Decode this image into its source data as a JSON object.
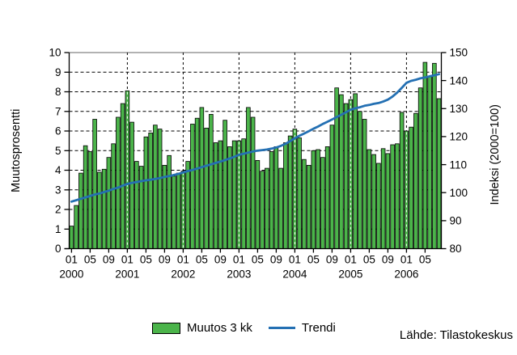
{
  "source_text": "Lähde: Tilastokeskus",
  "legend": {
    "items": [
      {
        "label": "Muutos 3 kk",
        "type": "bar",
        "color": "#4bb44a"
      },
      {
        "label": "Trendi",
        "type": "line",
        "color": "#2470b3"
      }
    ]
  },
  "chart_data": {
    "type": "bar",
    "title": "",
    "grid": {
      "horizontal": "dashed",
      "vertical": "dashed-at-january"
    },
    "legend_position": "bottom-center",
    "left_axis": {
      "label": "Muutosprosentti",
      "min": 0,
      "max": 10,
      "tick_step": 1
    },
    "right_axis": {
      "label": "Indeksi (2000=100)",
      "min": 80,
      "max": 150,
      "tick_step": 10
    },
    "x_axis": {
      "month_tick_labels": [
        "01",
        "05",
        "09"
      ],
      "year_labels": [
        "2000",
        "2001",
        "2002",
        "2003",
        "2004",
        "2005",
        "2006"
      ]
    },
    "months": [
      "2000-01",
      "2000-02",
      "2000-03",
      "2000-04",
      "2000-05",
      "2000-06",
      "2000-07",
      "2000-08",
      "2000-09",
      "2000-10",
      "2000-11",
      "2000-12",
      "2001-01",
      "2001-02",
      "2001-03",
      "2001-04",
      "2001-05",
      "2001-06",
      "2001-07",
      "2001-08",
      "2001-09",
      "2001-10",
      "2001-11",
      "2001-12",
      "2002-01",
      "2002-02",
      "2002-03",
      "2002-04",
      "2002-05",
      "2002-06",
      "2002-07",
      "2002-08",
      "2002-09",
      "2002-10",
      "2002-11",
      "2002-12",
      "2003-01",
      "2003-02",
      "2003-03",
      "2003-04",
      "2003-05",
      "2003-06",
      "2003-07",
      "2003-08",
      "2003-09",
      "2003-10",
      "2003-11",
      "2003-12",
      "2004-01",
      "2004-02",
      "2004-03",
      "2004-04",
      "2004-05",
      "2004-06",
      "2004-07",
      "2004-08",
      "2004-09",
      "2004-10",
      "2004-11",
      "2004-12",
      "2005-01",
      "2005-02",
      "2005-03",
      "2005-04",
      "2005-05",
      "2005-06",
      "2005-07",
      "2005-08",
      "2005-09",
      "2005-10",
      "2005-11",
      "2005-12",
      "2006-01",
      "2006-02",
      "2006-03",
      "2006-04",
      "2006-05",
      "2006-06",
      "2006-07",
      "2006-08"
    ],
    "series": [
      {
        "name": "Muutos 3 kk",
        "type": "bar",
        "axis": "left",
        "color": "#4bb44a",
        "values": [
          1.15,
          2.2,
          3.85,
          5.25,
          4.95,
          6.6,
          3.9,
          4.05,
          4.65,
          5.35,
          6.7,
          7.4,
          8.05,
          6.45,
          4.45,
          4.2,
          5.7,
          5.9,
          6.3,
          6.1,
          4.25,
          4.75,
          3.7,
          3.85,
          3.95,
          4.45,
          6.35,
          6.65,
          7.2,
          6.15,
          6.85,
          5.4,
          5.5,
          6.55,
          5.2,
          5.5,
          5.5,
          5.6,
          7.2,
          6.7,
          4.5,
          3.95,
          4.1,
          4.95,
          5.2,
          4.1,
          5.4,
          5.75,
          6.1,
          5.65,
          4.55,
          4.25,
          5.0,
          5.05,
          4.65,
          5.2,
          6.3,
          8.2,
          7.85,
          7.4,
          7.6,
          7.9,
          7.0,
          6.6,
          5.05,
          4.8,
          4.35,
          5.1,
          4.85,
          5.3,
          5.35,
          6.95,
          6.0,
          6.2,
          6.9,
          8.2,
          9.5,
          8.8,
          9.45,
          7.65
        ]
      },
      {
        "name": "Trendi",
        "type": "line",
        "axis": "right",
        "color": "#2470b3",
        "values": [
          96.8,
          97.3,
          97.8,
          98.3,
          98.8,
          99.3,
          99.7,
          100.2,
          100.7,
          101.3,
          101.8,
          102.5,
          103.1,
          103.5,
          103.8,
          104.1,
          104.4,
          104.6,
          104.9,
          105.2,
          105.6,
          105.9,
          106.3,
          106.7,
          107.2,
          107.7,
          108.1,
          108.6,
          109.1,
          109.6,
          110.1,
          110.6,
          111.1,
          111.6,
          112.2,
          112.8,
          113.5,
          113.9,
          114.3,
          114.7,
          115.0,
          115.2,
          115.4,
          115.7,
          116.1,
          116.7,
          117.4,
          118.4,
          119.4,
          120.3,
          121.1,
          121.9,
          122.8,
          123.6,
          124.5,
          125.3,
          126.1,
          127.0,
          127.8,
          128.7,
          129.6,
          130.1,
          130.5,
          131.0,
          131.3,
          131.7,
          132.0,
          132.5,
          133.2,
          134.3,
          135.7,
          137.4,
          139.2,
          139.9,
          140.3,
          140.8,
          141.1,
          141.5,
          141.9,
          142.3
        ]
      }
    ]
  }
}
